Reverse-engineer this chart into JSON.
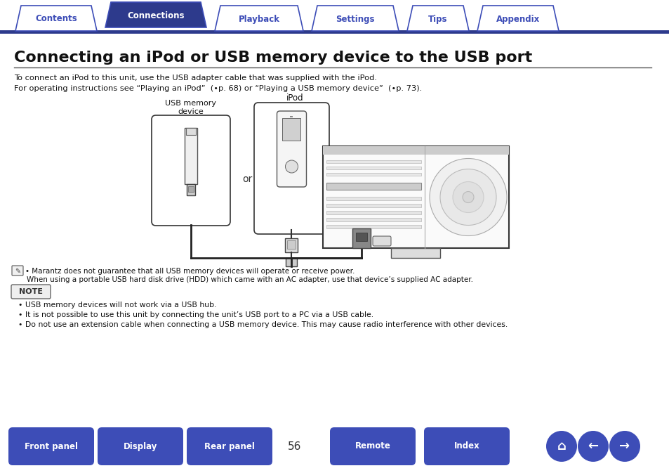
{
  "title": "Connecting an iPod or USB memory device to the USB port",
  "bg_color": "#ffffff",
  "tab_items": [
    "Contents",
    "Connections",
    "Playback",
    "Settings",
    "Tips",
    "Appendix"
  ],
  "tab_active": 1,
  "tab_color_active": "#2d3a8c",
  "tab_color_inactive": "#ffffff",
  "tab_border_color": "#3d4db7",
  "tab_text_color_active": "#ffffff",
  "tab_text_color_inactive": "#3d4db7",
  "bottom_buttons": [
    "Front panel",
    "Display",
    "Rear panel",
    "Remote",
    "Index"
  ],
  "bottom_btn_color": "#3d4db7",
  "bottom_btn_text_color": "#ffffff",
  "page_number": "56",
  "line1": "To connect an iPod to this unit, use the USB adapter cable that was supplied with the iPod.",
  "line2": "For operating instructions see “Playing an iPod”  (•p. 68) or “Playing a USB memory device”  (•p. 73).",
  "note_title": "NOTE",
  "note_bullets": [
    "USB memory devices will not work via a USB hub.",
    "It is not possible to use this unit by connecting the unit’s USB port to a PC via a USB cable.",
    "Do not use an extension cable when connecting a USB memory device. This may cause radio interference with other devices."
  ],
  "bullet_text": "Marantz does not guarantee that all USB memory devices will operate or receive power. When using a portable USB hard disk drive (HDD) which came with an AC adapter, use that device’s supplied AC adapter.",
  "header_line_color": "#2d3a8c",
  "divider_color": "#333333"
}
